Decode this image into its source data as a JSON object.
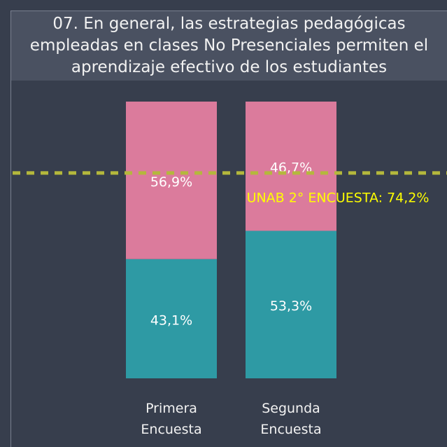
{
  "chart_data": {
    "type": "stacked_bar",
    "title": "07. En general, las estrategias pedagógicas empleadas en clases No Presenciales permiten el aprendizaje efectivo de los estudiantes",
    "categories": [
      "Primera Encuesta",
      "Segunda Encuesta"
    ],
    "series": [
      {
        "color": "#2e9aa4",
        "values": [
          43.1,
          53.3
        ],
        "value_labels": [
          "43,1%",
          "53,3%"
        ]
      },
      {
        "color": "#db7b9c",
        "values": [
          56.9,
          46.7
        ],
        "value_labels": [
          "56,9%",
          "46,7%"
        ]
      }
    ],
    "ylim": [
      0,
      100
    ],
    "reference_line": {
      "value": 74.2,
      "label": "UNAB 2° ENCUESTA: 74,2%",
      "color": "#b4b83c",
      "label_color": "#ffff00"
    }
  }
}
